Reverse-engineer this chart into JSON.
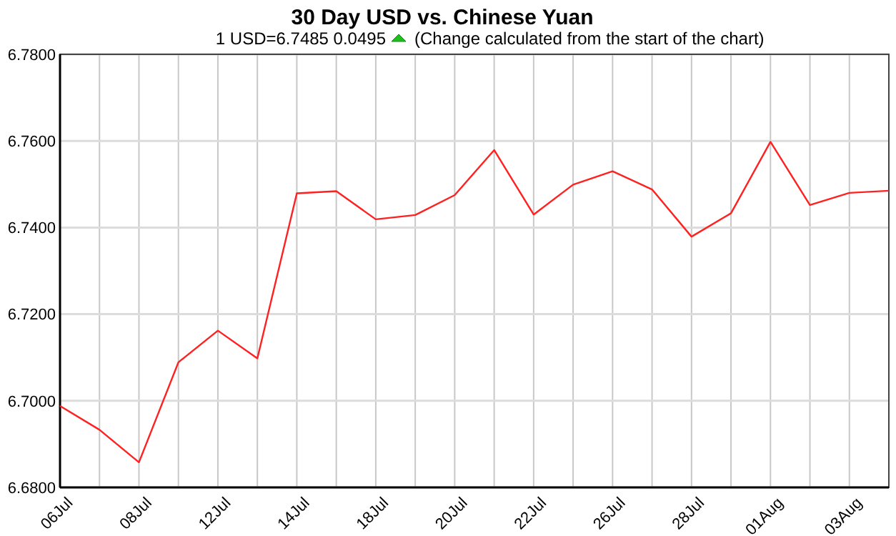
{
  "chart_data": {
    "type": "line",
    "title": "30 Day USD vs. Chinese Yuan",
    "subtitle": "1 USD=6.7485  0.0495",
    "annotations": [
      "(Change calculated from the start of the chart)"
    ],
    "categories": [
      "06Jul",
      null,
      "08Jul",
      null,
      "12Jul",
      null,
      "14Jul",
      null,
      "18Jul",
      null,
      "20Jul",
      null,
      "22Jul",
      null,
      "26Jul",
      null,
      "28Jul",
      null,
      "01Aug",
      null,
      "03Aug",
      null
    ],
    "series": [
      {
        "color": "#ff2020",
        "values": [
          6.6988,
          6.6933,
          6.6858,
          6.7089,
          6.7162,
          6.7098,
          6.7479,
          6.7484,
          6.7419,
          6.7429,
          6.7475,
          6.7579,
          6.743,
          6.7499,
          6.753,
          6.7488,
          6.7379,
          6.7433,
          6.7598,
          6.7452,
          6.748,
          6.7485
        ]
      }
    ],
    "ylim": [
      6.68,
      6.78
    ],
    "yticks": [
      {
        "value": 6.68,
        "label": "6.6800"
      },
      {
        "value": 6.7,
        "label": "6.7000"
      },
      {
        "value": 6.72,
        "label": "6.7200"
      },
      {
        "value": 6.74,
        "label": "6.7400"
      },
      {
        "value": 6.76,
        "label": "6.7600"
      },
      {
        "value": 6.78,
        "label": "6.7800"
      }
    ],
    "grid": true,
    "marker": "none",
    "line_style": "solid"
  }
}
